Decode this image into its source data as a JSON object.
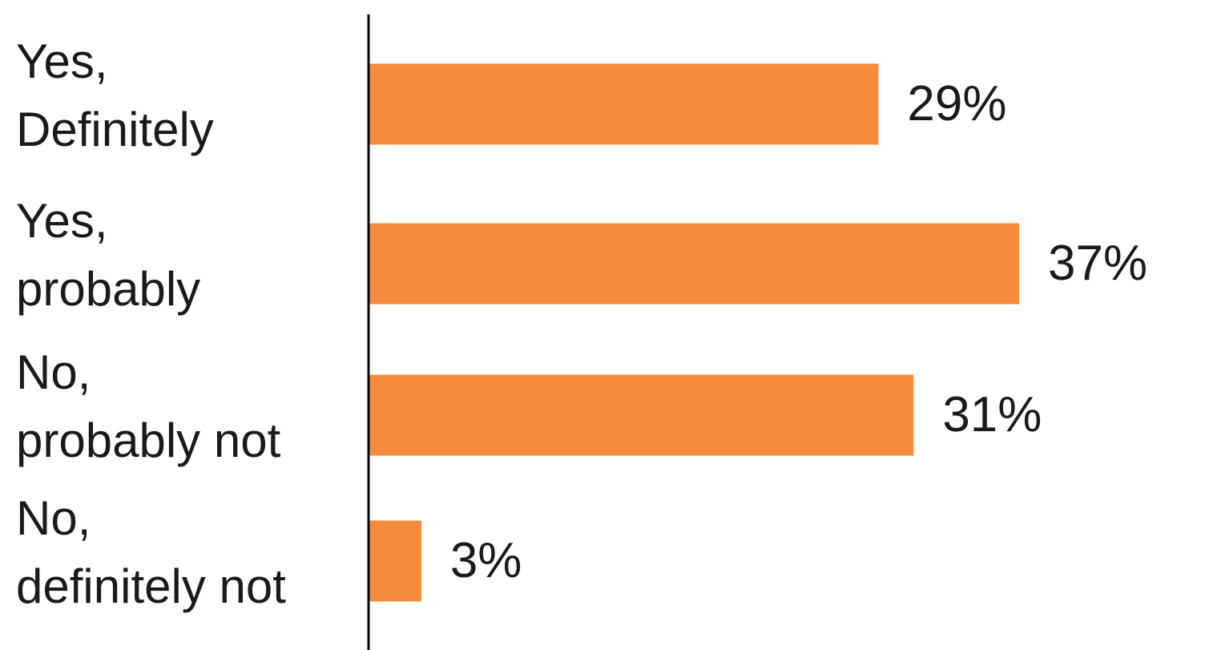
{
  "chart_data": {
    "type": "bar",
    "orientation": "horizontal",
    "categories": [
      [
        "Yes,",
        "Definitely"
      ],
      [
        "Yes,",
        "probably"
      ],
      [
        "No,",
        "probably not"
      ],
      [
        "No,",
        "definitely not"
      ]
    ],
    "values": [
      29,
      37,
      31,
      3
    ],
    "value_labels": [
      "29%",
      "37%",
      "31%",
      "3%"
    ],
    "title": "",
    "xlabel": "",
    "ylabel": "",
    "xlim": [
      0,
      40
    ],
    "grid": false,
    "legend": "none",
    "colors": {
      "bar": "#F68B3D",
      "axis": "#000000",
      "text": "#1a1a1a"
    }
  }
}
